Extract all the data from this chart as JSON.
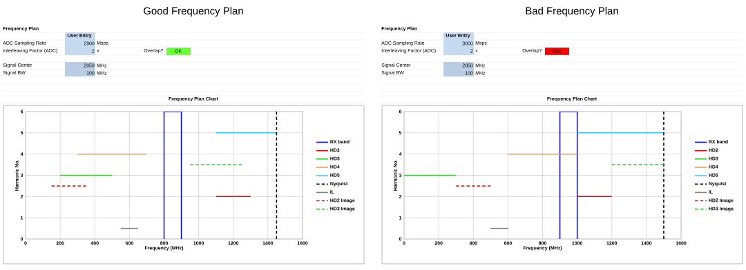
{
  "chart_data": [
    {
      "type": "line",
      "title": "Good Frequency Plan",
      "subtitle": "Frequency Plan Chart",
      "annotations": [
        "Frequency Plan",
        "User Entry",
        "ADC Sampling Rate",
        "2900",
        "Msps",
        "Interleaving Factor (ADC)",
        "2",
        "x",
        "Overlap?",
        "OK",
        "Signal Center",
        "2050",
        "MHz",
        "Signal BW",
        "100",
        "MHz"
      ],
      "xlabel": "Frequency (MHz)",
      "ylabel": "Harmonic No.",
      "xlim": [
        0,
        1600
      ],
      "xticks": [
        0,
        200,
        400,
        600,
        800,
        1000,
        1200,
        1400,
        1600
      ],
      "ylim": [
        0,
        6
      ],
      "yticks": [
        0,
        1,
        2,
        3,
        4,
        5,
        6
      ],
      "grid": true,
      "legend": "right",
      "marker": "none",
      "series": [
        {
          "name": "RX band",
          "color": "#0000ff",
          "x": [
            800,
            800,
            900,
            900
          ],
          "values": [
            0,
            6,
            6,
            0
          ]
        },
        {
          "name": "HD2",
          "color": "#ff0000",
          "x": [
            1100,
            1300
          ],
          "values": [
            2,
            2
          ]
        },
        {
          "name": "HD3",
          "color": "#33cc33",
          "x": [
            200,
            500
          ],
          "values": [
            3,
            3
          ]
        },
        {
          "name": "HD4",
          "color": "#f79646",
          "x": [
            300,
            700
          ],
          "values": [
            4,
            4
          ]
        },
        {
          "name": "HD5",
          "color": "#33ccff",
          "x": [
            1100,
            1450
          ],
          "values": [
            5,
            5
          ]
        },
        {
          "name": "Nyquist",
          "color": "#000000",
          "x": [
            1450,
            1450
          ],
          "values": [
            0,
            6
          ],
          "line_style": "dashed"
        },
        {
          "name": "IL",
          "color": "#808080",
          "x": [
            550,
            650
          ],
          "values": [
            0.5,
            0.5
          ]
        },
        {
          "name": "HD2 Image",
          "color": "#ff0000",
          "x": [
            150,
            350
          ],
          "values": [
            2.5,
            2.5
          ],
          "line_style": "dashed"
        },
        {
          "name": "HD3 Image",
          "color": "#33cc33",
          "x": [
            950,
            1250
          ],
          "values": [
            3.5,
            3.5
          ],
          "line_style": "dashed"
        }
      ]
    },
    {
      "type": "line",
      "title": "Bad Frequency Plan",
      "subtitle": "Frequency Plan Chart",
      "annotations": [
        "Frequency Plan",
        "User Entry",
        "ADC Sampling Rate",
        "3000",
        "Msps",
        "Interleaving Factor (ADC)",
        "2",
        "x",
        "Overlap?",
        "HD2",
        "Signal Center",
        "2050",
        "MHz",
        "Signal BW",
        "100",
        "MHz"
      ],
      "xlabel": "Frequency (MHz)",
      "ylabel": "Harmonic No.",
      "xlim": [
        0,
        1600
      ],
      "xticks": [
        0,
        200,
        400,
        600,
        800,
        1000,
        1200,
        1400,
        1600
      ],
      "ylim": [
        0,
        6
      ],
      "yticks": [
        0,
        1,
        2,
        3,
        4,
        5,
        6
      ],
      "grid": true,
      "legend": "right",
      "marker": "none",
      "series": [
        {
          "name": "RX band",
          "color": "#0000ff",
          "x": [
            900,
            900,
            1000,
            1000
          ],
          "values": [
            0,
            6,
            6,
            0
          ]
        },
        {
          "name": "HD2",
          "color": "#ff0000",
          "x": [
            1000,
            1200
          ],
          "values": [
            2,
            2
          ]
        },
        {
          "name": "HD3",
          "color": "#33cc33",
          "x": [
            0,
            300
          ],
          "values": [
            3,
            3
          ]
        },
        {
          "name": "HD4",
          "color": "#f79646",
          "x": [
            600,
            1000
          ],
          "values": [
            4,
            4
          ]
        },
        {
          "name": "HD5",
          "color": "#33ccff",
          "x": [
            1000,
            1500
          ],
          "values": [
            5,
            5
          ]
        },
        {
          "name": "Nyquist",
          "color": "#000000",
          "x": [
            1500,
            1500
          ],
          "values": [
            0,
            6
          ],
          "line_style": "dashed"
        },
        {
          "name": "IL",
          "color": "#808080",
          "x": [
            500,
            600
          ],
          "values": [
            0.5,
            0.5
          ]
        },
        {
          "name": "HD2 Image",
          "color": "#ff0000",
          "x": [
            300,
            500
          ],
          "values": [
            2.5,
            2.5
          ],
          "line_style": "dashed"
        },
        {
          "name": "HD3 Image",
          "color": "#33cc33",
          "x": [
            1200,
            1500
          ],
          "values": [
            3.5,
            3.5
          ],
          "line_style": "dashed"
        }
      ]
    }
  ]
}
